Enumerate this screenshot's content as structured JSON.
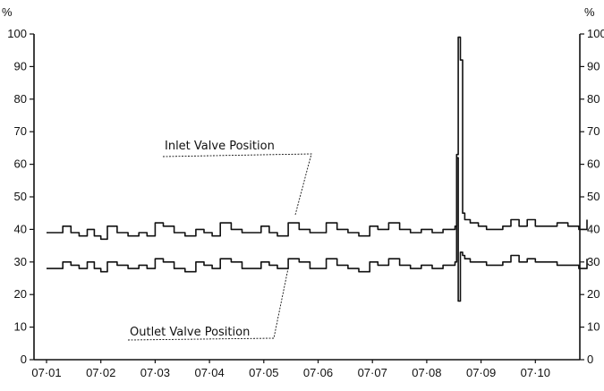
{
  "chart_data": {
    "type": "line",
    "left_unit": "%",
    "right_unit": "%",
    "y_ticks": [
      "0",
      "10",
      "20",
      "30",
      "40",
      "50",
      "60",
      "70",
      "80",
      "90",
      "100"
    ],
    "ylim": [
      0,
      100
    ],
    "x_categories": [
      "07·01",
      "07·02",
      "07·03",
      "07·04",
      "07·05",
      "07·06",
      "07·07",
      "07·08",
      "07·09",
      "07·10"
    ],
    "grid": false,
    "annotations": {
      "inlet": "Inlet Valve Position",
      "outlet": "Outlet Valve Position"
    },
    "series": [
      {
        "name": "Inlet Valve Position",
        "x": [
          0,
          0.12,
          0.3,
          0.45,
          0.6,
          0.75,
          0.88,
          1.0,
          1.12,
          1.3,
          1.5,
          1.7,
          1.85,
          2.0,
          2.15,
          2.35,
          2.55,
          2.75,
          2.9,
          3.05,
          3.2,
          3.4,
          3.6,
          3.8,
          3.95,
          4.1,
          4.25,
          4.45,
          4.65,
          4.85,
          5.0,
          5.15,
          5.35,
          5.55,
          5.75,
          5.95,
          6.1,
          6.3,
          6.5,
          6.7,
          6.9,
          7.1,
          7.3,
          7.45,
          7.52,
          7.55,
          7.58,
          7.62,
          7.66,
          7.7,
          7.8,
          7.95,
          8.1,
          8.25,
          8.4,
          8.55,
          8.7,
          8.85,
          9.0,
          9.2,
          9.4,
          9.6,
          9.8,
          9.95
        ],
        "values": [
          39,
          39,
          41,
          39,
          38,
          40,
          38,
          37,
          41,
          39,
          38,
          39,
          38,
          42,
          41,
          39,
          38,
          40,
          39,
          38,
          42,
          40,
          39,
          39,
          41,
          39,
          38,
          42,
          40,
          39,
          39,
          42,
          40,
          39,
          38,
          41,
          40,
          42,
          40,
          39,
          40,
          39,
          40,
          40,
          41,
          63,
          99,
          92,
          45,
          43,
          42,
          41,
          40,
          40,
          41,
          43,
          41,
          43,
          41,
          41,
          42,
          41,
          40,
          43
        ]
      },
      {
        "name": "Outlet Valve Position",
        "x": [
          0,
          0.12,
          0.3,
          0.45,
          0.6,
          0.75,
          0.88,
          1.0,
          1.12,
          1.3,
          1.5,
          1.7,
          1.85,
          2.0,
          2.15,
          2.35,
          2.55,
          2.75,
          2.9,
          3.05,
          3.2,
          3.4,
          3.6,
          3.8,
          3.95,
          4.1,
          4.25,
          4.45,
          4.65,
          4.85,
          5.0,
          5.15,
          5.35,
          5.55,
          5.75,
          5.95,
          6.1,
          6.3,
          6.5,
          6.7,
          6.9,
          7.1,
          7.3,
          7.45,
          7.52,
          7.55,
          7.58,
          7.62,
          7.66,
          7.7,
          7.8,
          7.95,
          8.1,
          8.25,
          8.4,
          8.55,
          8.7,
          8.85,
          9.0,
          9.2,
          9.4,
          9.6,
          9.8,
          9.95
        ],
        "values": [
          28,
          28,
          30,
          29,
          28,
          30,
          28,
          27,
          30,
          29,
          28,
          29,
          28,
          31,
          30,
          28,
          27,
          30,
          29,
          28,
          31,
          30,
          28,
          28,
          30,
          29,
          28,
          31,
          30,
          28,
          28,
          31,
          29,
          28,
          27,
          30,
          29,
          31,
          29,
          28,
          29,
          28,
          29,
          29,
          30,
          62,
          18,
          33,
          32,
          31,
          30,
          30,
          29,
          29,
          30,
          32,
          30,
          31,
          30,
          30,
          29,
          29,
          28,
          31
        ]
      }
    ]
  }
}
